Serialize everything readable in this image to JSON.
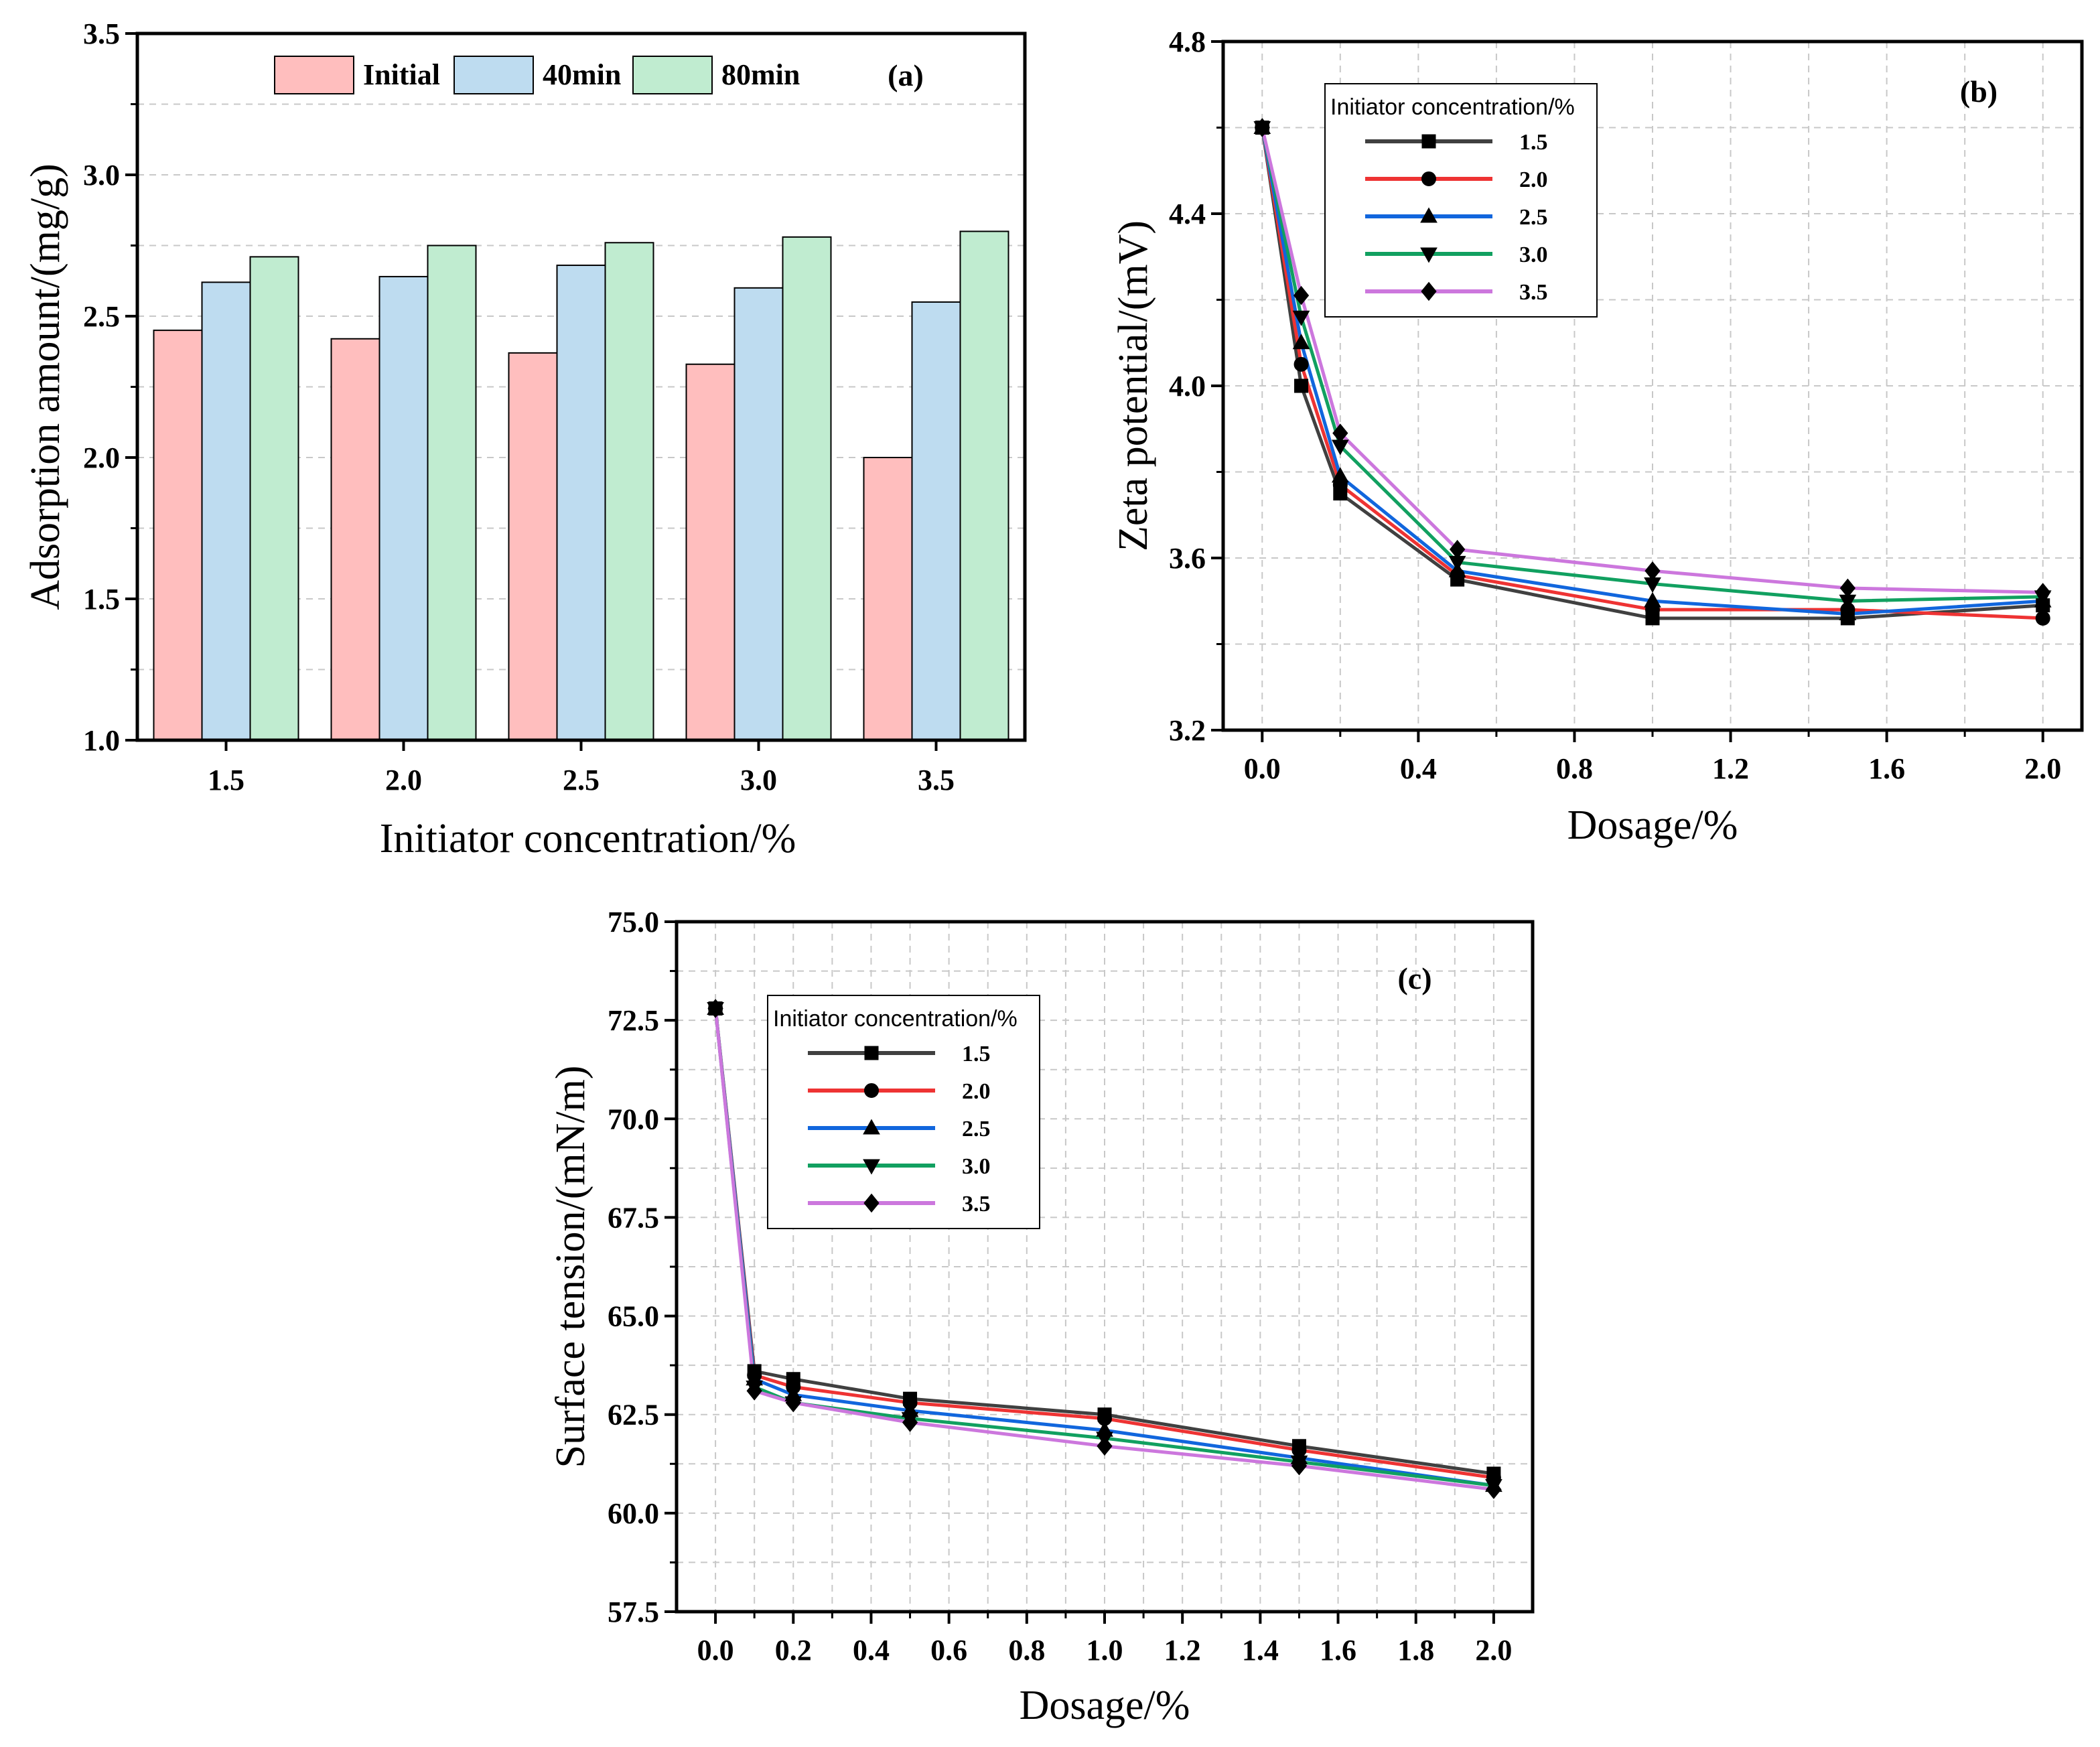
{
  "colors": {
    "Initial": "#ffbebe",
    "40min": "#bedcf0",
    "80min": "#c0ecd0",
    "1.5": "#404040",
    "2.0": "#ee3333",
    "2.5": "#1166dd",
    "3.0": "#11a060",
    "3.5": "#cc77dd"
  },
  "chart_data": [
    {
      "id": "a",
      "type": "bar",
      "panel_label": "(a)",
      "title": "",
      "xlabel": "Initiator concentration/%",
      "ylabel": "Adsorption amount/(mg/g)",
      "categories": [
        "1.5",
        "2.0",
        "2.5",
        "3.0",
        "3.5"
      ],
      "ylim": [
        1.0,
        3.5
      ],
      "yticks": [
        "1.0",
        "1.5",
        "2.0",
        "2.5",
        "3.0",
        "3.5"
      ],
      "legend_position": "top-center",
      "grid": true,
      "series": [
        {
          "name": "Initial",
          "values": [
            2.45,
            2.42,
            2.37,
            2.33,
            2.0
          ]
        },
        {
          "name": "40min",
          "values": [
            2.62,
            2.64,
            2.68,
            2.6,
            2.55
          ]
        },
        {
          "name": "80min",
          "values": [
            2.71,
            2.75,
            2.76,
            2.78,
            2.8
          ]
        }
      ]
    },
    {
      "id": "b",
      "type": "line",
      "panel_label": "(b)",
      "title": "",
      "xlabel": "Dosage/%",
      "ylabel": "Zeta potential/(mV)",
      "legend_title": "Initiator concentration/%",
      "legend_position": "top-left",
      "grid": true,
      "x": [
        0,
        0.1,
        0.2,
        0.5,
        1.0,
        1.5,
        2.0
      ],
      "xlim": [
        -0.1,
        2.1
      ],
      "ylim": [
        3.2,
        4.8
      ],
      "xticks": [
        "0.0",
        "0.4",
        "0.8",
        "1.2",
        "1.6",
        "2.0"
      ],
      "yticks": [
        "3.2",
        "3.6",
        "4.0",
        "4.4",
        "4.8"
      ],
      "series": [
        {
          "name": "1.5",
          "marker": "square",
          "values": [
            4.6,
            4.0,
            3.75,
            3.55,
            3.46,
            3.46,
            3.49
          ]
        },
        {
          "name": "2.0",
          "marker": "circle",
          "values": [
            4.6,
            4.05,
            3.77,
            3.56,
            3.48,
            3.48,
            3.46
          ]
        },
        {
          "name": "2.5",
          "marker": "triangle-up",
          "values": [
            4.6,
            4.1,
            3.79,
            3.57,
            3.5,
            3.47,
            3.5
          ]
        },
        {
          "name": "3.0",
          "marker": "triangle-down",
          "values": [
            4.6,
            4.16,
            3.86,
            3.59,
            3.54,
            3.5,
            3.51
          ]
        },
        {
          "name": "3.5",
          "marker": "diamond",
          "values": [
            4.6,
            4.21,
            3.89,
            3.62,
            3.57,
            3.53,
            3.52
          ]
        }
      ]
    },
    {
      "id": "c",
      "type": "line",
      "panel_label": "(c)",
      "title": "",
      "xlabel": "Dosage/%",
      "ylabel": "Surface tension/(mN/m)",
      "legend_title": "Initiator concentration/%",
      "legend_position": "top-left",
      "grid": true,
      "x": [
        0,
        0.1,
        0.2,
        0.5,
        1.0,
        1.5,
        2.0
      ],
      "xlim": [
        -0.1,
        2.1
      ],
      "ylim": [
        57.5,
        75.0
      ],
      "xticks": [
        "0.0",
        "0.2",
        "0.4",
        "0.6",
        "0.8",
        "1.0",
        "1.2",
        "1.4",
        "1.6",
        "1.8",
        "2.0"
      ],
      "yticks": [
        "57.5",
        "60.0",
        "62.5",
        "65.0",
        "67.5",
        "70.0",
        "72.5",
        "75.0"
      ],
      "series": [
        {
          "name": "1.5",
          "marker": "square",
          "values": [
            72.8,
            63.6,
            63.4,
            62.9,
            62.5,
            61.7,
            61.0
          ]
        },
        {
          "name": "2.0",
          "marker": "circle",
          "values": [
            72.8,
            63.5,
            63.2,
            62.8,
            62.4,
            61.6,
            60.9
          ]
        },
        {
          "name": "2.5",
          "marker": "triangle-up",
          "values": [
            72.8,
            63.4,
            63.0,
            62.6,
            62.1,
            61.4,
            60.7
          ]
        },
        {
          "name": "3.0",
          "marker": "triangle-down",
          "values": [
            72.8,
            63.2,
            62.8,
            62.4,
            61.9,
            61.3,
            60.7
          ]
        },
        {
          "name": "3.5",
          "marker": "diamond",
          "values": [
            72.8,
            63.1,
            62.8,
            62.3,
            61.7,
            61.2,
            60.6
          ]
        }
      ]
    }
  ]
}
